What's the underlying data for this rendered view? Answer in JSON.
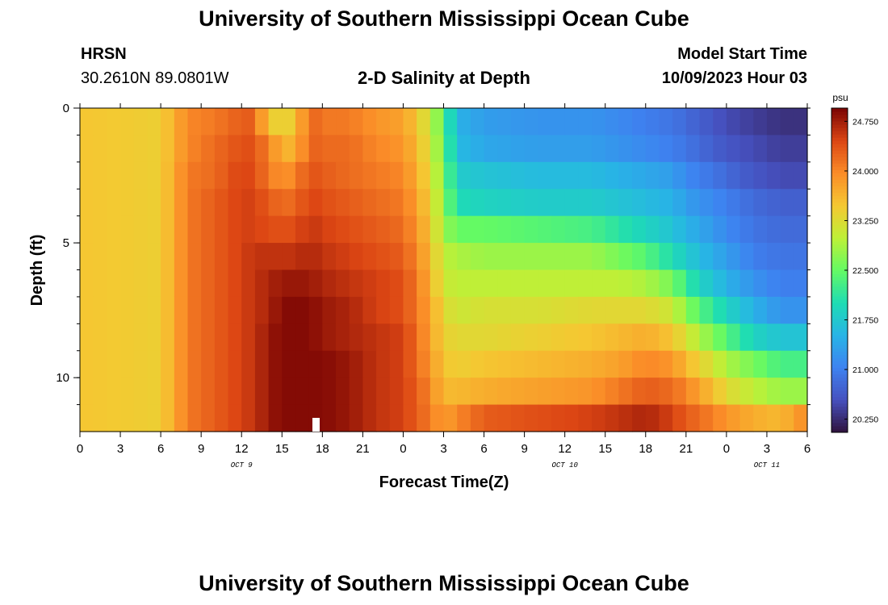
{
  "header": {
    "title": "University of Southern Mississippi Ocean Cube",
    "station": "HRSN",
    "coords": "30.2610N  89.0801W",
    "subtitle": "2-D Salinity at Depth",
    "model_start_label": "Model Start Time",
    "model_start_value": "10/09/2023 Hour 03"
  },
  "footer": {
    "title": "University of Southern Mississippi Ocean Cube"
  },
  "chart_data": {
    "type": "heatmap",
    "title": "2-D Salinity at Depth",
    "xlabel": "Forecast Time(Z)",
    "ylabel": "Depth (ft)",
    "x_range_hours": [
      0,
      54
    ],
    "x_step_hours": 1,
    "x_tick_labels": [
      "0",
      "3",
      "6",
      "9",
      "12",
      "15",
      "18",
      "21",
      "0",
      "3",
      "6",
      "9",
      "12",
      "15",
      "18",
      "21",
      "0",
      "3",
      "6"
    ],
    "x_tick_hours": [
      0,
      3,
      6,
      9,
      12,
      15,
      18,
      21,
      24,
      27,
      30,
      33,
      36,
      39,
      42,
      45,
      48,
      51,
      54
    ],
    "date_labels": [
      {
        "label": "OCT 9",
        "hour": 12
      },
      {
        "label": "OCT 10",
        "hour": 36
      },
      {
        "label": "OCT 11",
        "hour": 51
      }
    ],
    "y_range_ft": [
      0,
      12
    ],
    "y_tick_labels": [
      "0",
      "5",
      "10"
    ],
    "y_ticks_ft": [
      0,
      5,
      10
    ],
    "y_minor_ticks_ft": [
      0,
      1,
      2,
      3,
      4,
      5,
      6,
      7,
      8,
      9,
      10,
      11
    ],
    "depth_levels_ft": [
      0,
      1,
      2,
      3,
      4,
      5,
      6,
      7,
      8,
      9,
      10,
      11
    ],
    "colorbar": {
      "units": "psu",
      "min": 20.05,
      "max": 24.95,
      "tick_values": [
        24.75,
        24.0,
        23.25,
        22.5,
        21.75,
        21.0,
        20.25
      ],
      "tick_labels": [
        "24.750",
        "24.000",
        "23.250",
        "22.500",
        "21.750",
        "21.000",
        "20.250"
      ]
    },
    "keyframe_hours": [
      0,
      6,
      8,
      10,
      12,
      13,
      14,
      15,
      16,
      17,
      18,
      20,
      22,
      24,
      25,
      26,
      27,
      28,
      30,
      34,
      38,
      40,
      42,
      44,
      45,
      46,
      48,
      50,
      52,
      54
    ],
    "keyframe_rows": [
      [
        23.5,
        23.4,
        24.0,
        24.1,
        24.3,
        24.3,
        23.4,
        23.4,
        23.4,
        24.3,
        24.1,
        24.1,
        23.9,
        23.8,
        23.5,
        23.1,
        22.4,
        21.5,
        21.3,
        21.2,
        21.2,
        21.1,
        21.0,
        20.9,
        20.8,
        20.7,
        20.5,
        20.4,
        20.3,
        20.3
      ],
      [
        23.5,
        23.4,
        24.0,
        24.2,
        24.4,
        24.4,
        24.0,
        23.7,
        23.6,
        24.3,
        24.2,
        24.2,
        24.0,
        23.9,
        23.6,
        23.2,
        22.5,
        21.6,
        21.4,
        21.3,
        21.3,
        21.2,
        21.1,
        21.0,
        20.9,
        20.8,
        20.6,
        20.5,
        20.4,
        20.4
      ],
      [
        23.5,
        23.4,
        24.1,
        24.2,
        24.5,
        24.4,
        24.1,
        23.9,
        24.0,
        24.4,
        24.3,
        24.2,
        24.1,
        24.0,
        23.7,
        23.3,
        22.6,
        21.8,
        21.7,
        21.6,
        21.6,
        21.5,
        21.4,
        21.3,
        21.1,
        21.0,
        20.8,
        20.6,
        20.5,
        20.5
      ],
      [
        23.5,
        23.4,
        24.1,
        24.3,
        24.5,
        24.5,
        24.3,
        24.2,
        24.2,
        24.5,
        24.4,
        24.3,
        24.2,
        24.1,
        23.8,
        23.4,
        22.7,
        22.0,
        21.9,
        21.8,
        21.8,
        21.7,
        21.6,
        21.5,
        21.3,
        21.2,
        21.0,
        20.8,
        20.7,
        20.7
      ],
      [
        23.5,
        23.4,
        24.1,
        24.3,
        24.5,
        24.5,
        24.4,
        24.4,
        24.4,
        24.6,
        24.5,
        24.4,
        24.3,
        24.2,
        23.9,
        23.5,
        22.8,
        22.5,
        22.5,
        22.4,
        22.3,
        22.1,
        21.9,
        21.7,
        21.5,
        21.4,
        21.1,
        20.9,
        20.8,
        20.8
      ],
      [
        23.5,
        23.4,
        24.1,
        24.3,
        24.5,
        24.6,
        24.6,
        24.6,
        24.6,
        24.7,
        24.6,
        24.5,
        24.4,
        24.3,
        24.0,
        23.6,
        23.0,
        22.9,
        22.8,
        22.8,
        22.8,
        22.6,
        22.4,
        22.0,
        21.8,
        21.6,
        21.3,
        21.0,
        20.9,
        20.9
      ],
      [
        23.5,
        23.4,
        24.1,
        24.3,
        24.5,
        24.6,
        24.7,
        24.8,
        24.8,
        24.8,
        24.7,
        24.6,
        24.5,
        24.4,
        24.1,
        23.7,
        23.1,
        23.0,
        23.0,
        23.0,
        23.0,
        23.0,
        22.9,
        22.6,
        22.2,
        21.9,
        21.5,
        21.2,
        21.0,
        21.0
      ],
      [
        23.5,
        23.4,
        24.1,
        24.3,
        24.5,
        24.6,
        24.7,
        24.9,
        24.9,
        24.9,
        24.8,
        24.7,
        24.5,
        24.4,
        24.1,
        23.8,
        23.3,
        23.1,
        23.2,
        23.2,
        23.3,
        23.3,
        23.3,
        23.1,
        22.7,
        22.4,
        21.9,
        21.5,
        21.2,
        21.2
      ],
      [
        23.5,
        23.4,
        24.1,
        24.3,
        24.5,
        24.6,
        24.8,
        24.9,
        24.9,
        24.9,
        24.8,
        24.7,
        24.6,
        24.5,
        24.2,
        23.8,
        23.4,
        23.3,
        23.3,
        23.4,
        23.5,
        23.6,
        23.7,
        23.5,
        23.2,
        22.9,
        22.4,
        21.9,
        21.7,
        21.7
      ],
      [
        23.5,
        23.4,
        24.1,
        24.3,
        24.5,
        24.6,
        24.8,
        24.9,
        24.9,
        24.9,
        24.9,
        24.8,
        24.6,
        24.5,
        24.2,
        23.9,
        23.5,
        23.4,
        23.5,
        23.6,
        23.7,
        23.8,
        24.0,
        23.9,
        23.6,
        23.4,
        22.9,
        22.6,
        22.3,
        22.3
      ],
      [
        23.5,
        23.4,
        24.1,
        24.3,
        24.5,
        24.6,
        24.8,
        24.9,
        24.9,
        24.9,
        24.9,
        24.8,
        24.6,
        24.5,
        24.3,
        24.0,
        23.6,
        23.6,
        23.7,
        23.8,
        23.9,
        24.1,
        24.3,
        24.2,
        24.0,
        23.8,
        23.3,
        23.0,
        22.8,
        22.8
      ],
      [
        23.5,
        23.4,
        24.1,
        24.3,
        24.5,
        24.6,
        24.8,
        24.9,
        24.9,
        24.9,
        24.9,
        24.8,
        24.6,
        24.5,
        24.3,
        24.1,
        23.8,
        24.0,
        24.3,
        24.4,
        24.5,
        24.6,
        24.7,
        24.5,
        24.3,
        24.2,
        23.9,
        23.7,
        23.6,
        24.0
      ]
    ]
  }
}
